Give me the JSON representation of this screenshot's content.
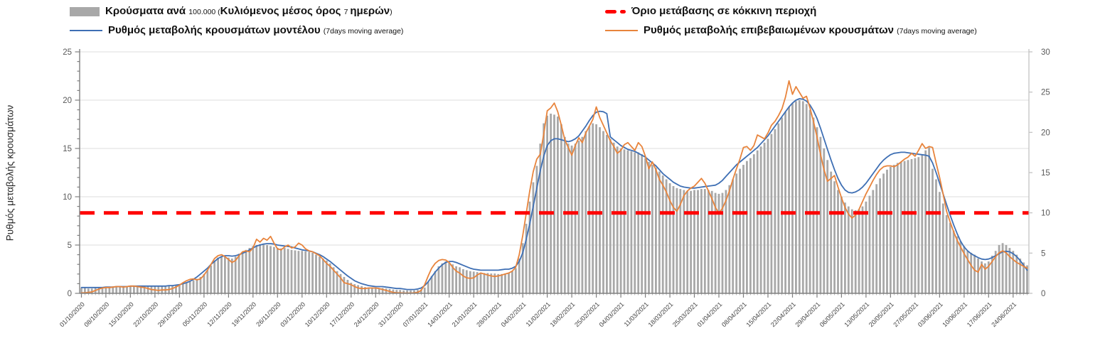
{
  "legend": {
    "cases_bars": {
      "main": "Κρούσματα ανά ",
      "unit": "100.000 (",
      "main2": "Κυλιόμενος μέσος όρος ",
      "num": "7 ",
      "main3": "ημερών",
      "close": ")"
    },
    "model_line": {
      "main": "Ρυθμός μεταβολής κρουσμάτων μοντέλου ",
      "small": "(7days moving average)"
    },
    "threshold": {
      "main": "Όριο μετάβασης σε κόκκινη περιοχή"
    },
    "confirmed_line": {
      "main": "Ρυθμός μεταβολής επιβεβαιωμένων κρουσμάτων ",
      "small": "(7days moving average)"
    }
  },
  "chart": {
    "y_left": {
      "title": "Ρυθμός μεταβολής κρουσμάτων",
      "ticks": [
        0,
        5,
        10,
        15,
        20,
        25
      ]
    },
    "y_right": {
      "ticks": [
        0,
        5,
        10,
        15,
        20,
        25,
        30
      ]
    },
    "colors": {
      "bar": "#a8a8a8",
      "model": "#3e6fb4",
      "confirmed": "#e8843c",
      "threshold": "#ff0000",
      "grid": "#dcdcdc",
      "axis": "#808080",
      "axis_light": "#bfbfbf",
      "tick_label": "#595959",
      "date_label": "#404040"
    }
  },
  "chart_data": {
    "type": "combo",
    "title": "",
    "start_date": "01/10/2020",
    "end_date": "28/06/2021",
    "frequency": "daily",
    "ylim_left": [
      0,
      25
    ],
    "ylim_right": [
      0,
      30
    ],
    "grid": "horizontal",
    "legend_position": "top",
    "x_tick_labels": [
      "01/10/2020",
      "08/10/2020",
      "15/10/2020",
      "22/10/2020",
      "29/10/2020",
      "05/11/2020",
      "12/11/2020",
      "19/11/2020",
      "26/11/2020",
      "03/12/2020",
      "10/12/2020",
      "17/12/2020",
      "24/12/2020",
      "31/12/2020",
      "07/01/2021",
      "14/01/2021",
      "21/01/2021",
      "28/01/2021",
      "04/02/2021",
      "11/02/2021",
      "18/02/2021",
      "25/02/2021",
      "04/03/2021",
      "11/03/2021",
      "18/03/2021",
      "25/03/2021",
      "01/04/2021",
      "08/04/2021",
      "15/04/2021",
      "22/04/2021",
      "29/04/2021",
      "06/05/2021",
      "13/05/2021",
      "20/05/2021",
      "27/05/2021",
      "03/06/2021",
      "10/06/2021",
      "17/06/2021",
      "24/06/2021"
    ],
    "threshold": {
      "name": "Όριο μετάβασης σε κόκκινη περιοχή",
      "value_right_axis": 10,
      "color": "#ff0000"
    },
    "series": [
      {
        "name": "Κρούσματα ανά 100.000 (Κυλιόμενος μέσος όρος 7 ημερών)",
        "type": "bar",
        "axis": "left",
        "color": "#a8a8a8",
        "values": [
          0.55,
          0.55,
          0.5,
          0.5,
          0.55,
          0.55,
          0.6,
          0.6,
          0.6,
          0.65,
          0.7,
          0.75,
          0.7,
          0.75,
          0.8,
          0.75,
          0.7,
          0.7,
          0.75,
          0.7,
          0.7,
          0.7,
          0.75,
          0.7,
          0.7,
          0.75,
          0.8,
          0.85,
          0.9,
          1.0,
          1.1,
          1.2,
          1.35,
          1.5,
          1.7,
          2.0,
          2.4,
          2.9,
          3.4,
          3.7,
          3.8,
          3.8,
          3.7,
          3.6,
          3.8,
          4.1,
          4.3,
          4.5,
          4.7,
          4.9,
          5.0,
          5.1,
          5.1,
          5.0,
          4.9,
          4.8,
          4.7,
          4.65,
          4.7,
          4.6,
          4.5,
          4.45,
          4.4,
          4.4,
          4.35,
          4.3,
          4.2,
          4.0,
          3.8,
          3.6,
          3.4,
          3.1,
          2.7,
          2.3,
          2.0,
          1.7,
          1.4,
          1.1,
          0.95,
          0.85,
          0.75,
          0.65,
          0.6,
          0.6,
          0.55,
          0.55,
          0.55,
          0.5,
          0.45,
          0.4,
          0.35,
          0.35,
          0.3,
          0.3,
          0.3,
          0.3,
          0.35,
          0.4,
          0.6,
          1.2,
          1.8,
          2.3,
          2.8,
          3.1,
          3.3,
          3.2,
          3.0,
          2.8,
          2.7,
          2.5,
          2.4,
          2.3,
          2.25,
          2.2,
          2.15,
          2.1,
          2.1,
          2.05,
          2.05,
          2.0,
          2.0,
          2.05,
          2.1,
          2.3,
          2.6,
          3.6,
          5.2,
          7.2,
          9.5,
          11.5,
          13.2,
          15.5,
          17.6,
          18.4,
          18.6,
          18.5,
          18.3,
          17.5,
          16.2,
          15.5,
          15.3,
          15.5,
          15.8,
          16.2,
          16.8,
          17.3,
          17.6,
          17.5,
          17.2,
          16.8,
          16.4,
          16.0,
          15.6,
          15.2,
          15.0,
          14.9,
          14.8,
          14.7,
          14.6,
          14.6,
          14.4,
          14.0,
          13.6,
          13.3,
          13.0,
          12.6,
          12.2,
          11.8,
          11.4,
          11.1,
          10.9,
          10.8,
          10.7,
          10.6,
          10.6,
          10.7,
          10.7,
          10.8,
          10.8,
          10.7,
          10.6,
          10.4,
          10.3,
          10.4,
          10.7,
          11.2,
          11.8,
          12.4,
          12.9,
          13.3,
          13.7,
          14.0,
          14.4,
          14.8,
          15.2,
          15.6,
          16.0,
          16.5,
          17.0,
          17.6,
          18.2,
          18.8,
          19.3,
          19.7,
          19.9,
          20.0,
          19.9,
          19.6,
          19.0,
          18.2,
          17.2,
          16.2,
          15.0,
          13.8,
          12.6,
          11.6,
          10.7,
          10.0,
          9.4,
          9.0,
          8.7,
          8.6,
          8.7,
          9.0,
          9.5,
          10.1,
          10.7,
          11.3,
          11.9,
          12.4,
          12.8,
          13.1,
          13.3,
          13.5,
          13.6,
          13.7,
          13.8,
          13.9,
          14.0,
          14.1,
          14.3,
          14.8,
          15.1,
          12.9,
          11.8,
          10.5,
          9.3,
          8.1,
          7.3,
          6.5,
          5.9,
          5.4,
          4.9,
          4.4,
          4.2,
          4.0,
          3.6,
          3.3,
          3.1,
          3.3,
          3.9,
          4.4,
          5.0,
          5.2,
          5.0,
          4.7,
          4.4,
          4.0,
          3.6,
          3.2,
          2.9
        ]
      },
      {
        "name": "Ρυθμός μεταβολής κρουσμάτων μοντέλου (7days moving average)",
        "type": "line",
        "axis": "left",
        "color": "#3e6fb4",
        "values": [
          0.6,
          0.6,
          0.6,
          0.6,
          0.6,
          0.6,
          0.6,
          0.65,
          0.65,
          0.65,
          0.7,
          0.7,
          0.7,
          0.7,
          0.75,
          0.75,
          0.75,
          0.75,
          0.75,
          0.75,
          0.75,
          0.75,
          0.75,
          0.75,
          0.75,
          0.8,
          0.8,
          0.85,
          0.9,
          1.0,
          1.1,
          1.25,
          1.45,
          1.7,
          2.0,
          2.3,
          2.6,
          3.0,
          3.3,
          3.6,
          3.8,
          3.9,
          3.9,
          3.85,
          3.9,
          4.0,
          4.15,
          4.3,
          4.5,
          4.7,
          4.9,
          5.0,
          5.1,
          5.15,
          5.15,
          5.1,
          5.0,
          4.95,
          4.9,
          4.85,
          4.8,
          4.7,
          4.6,
          4.5,
          4.45,
          4.4,
          4.3,
          4.15,
          4.0,
          3.8,
          3.55,
          3.3,
          3.0,
          2.7,
          2.4,
          2.1,
          1.8,
          1.55,
          1.3,
          1.15,
          1.0,
          0.9,
          0.8,
          0.75,
          0.7,
          0.7,
          0.7,
          0.65,
          0.6,
          0.55,
          0.5,
          0.5,
          0.45,
          0.4,
          0.4,
          0.4,
          0.45,
          0.55,
          0.8,
          1.2,
          1.7,
          2.2,
          2.6,
          2.95,
          3.2,
          3.3,
          3.3,
          3.2,
          3.05,
          2.9,
          2.75,
          2.6,
          2.5,
          2.45,
          2.4,
          2.4,
          2.4,
          2.4,
          2.4,
          2.4,
          2.45,
          2.5,
          2.5,
          2.6,
          2.8,
          3.3,
          4.2,
          5.6,
          7.2,
          9.0,
          10.9,
          12.7,
          14.2,
          15.3,
          15.8,
          16.0,
          16.0,
          15.9,
          15.8,
          15.7,
          15.8,
          16.0,
          16.3,
          16.8,
          17.3,
          17.9,
          18.4,
          18.75,
          18.85,
          18.8,
          18.6,
          16.2,
          15.9,
          15.6,
          15.3,
          15.1,
          14.9,
          14.8,
          14.7,
          14.5,
          14.3,
          14.1,
          13.8,
          13.5,
          13.2,
          12.8,
          12.4,
          12.1,
          11.8,
          11.5,
          11.3,
          11.1,
          11.0,
          10.95,
          10.9,
          10.9,
          10.95,
          11.0,
          11.05,
          11.1,
          11.15,
          11.2,
          11.4,
          11.7,
          12.1,
          12.5,
          12.9,
          13.3,
          13.6,
          13.9,
          14.2,
          14.5,
          14.8,
          15.1,
          15.5,
          15.9,
          16.3,
          16.8,
          17.3,
          17.8,
          18.3,
          18.8,
          19.3,
          19.7,
          20.0,
          20.15,
          20.1,
          19.9,
          19.5,
          18.9,
          18.1,
          17.1,
          16.0,
          14.9,
          13.8,
          12.8,
          11.9,
          11.2,
          10.7,
          10.45,
          10.4,
          10.5,
          10.7,
          11.0,
          11.4,
          11.9,
          12.4,
          12.9,
          13.4,
          13.8,
          14.1,
          14.35,
          14.5,
          14.55,
          14.6,
          14.6,
          14.55,
          14.5,
          14.45,
          14.4,
          14.35,
          14.3,
          14.2,
          13.5,
          12.5,
          11.4,
          10.3,
          9.2,
          8.1,
          7.1,
          6.2,
          5.4,
          4.8,
          4.4,
          4.1,
          3.9,
          3.7,
          3.55,
          3.5,
          3.55,
          3.7,
          3.9,
          4.1,
          4.3,
          4.35,
          4.3,
          4.1,
          3.8,
          3.4,
          2.9,
          2.4
        ]
      },
      {
        "name": "Ρυθμός μεταβολής επιβεβαιωμένων κρουσμάτων (7days moving average)",
        "type": "line",
        "axis": "left",
        "color": "#e8843c",
        "values": [
          0.05,
          0.05,
          0.1,
          0.15,
          0.3,
          0.45,
          0.55,
          0.6,
          0.6,
          0.65,
          0.7,
          0.7,
          0.65,
          0.7,
          0.75,
          0.75,
          0.7,
          0.65,
          0.6,
          0.5,
          0.4,
          0.35,
          0.3,
          0.35,
          0.35,
          0.4,
          0.5,
          0.65,
          0.85,
          1.1,
          1.3,
          1.45,
          1.5,
          1.4,
          1.5,
          1.9,
          2.4,
          3.0,
          3.6,
          3.9,
          4.0,
          3.8,
          3.5,
          3.2,
          3.4,
          3.9,
          4.3,
          4.4,
          4.3,
          4.7,
          5.6,
          5.3,
          5.7,
          5.5,
          5.9,
          5.2,
          4.6,
          4.5,
          4.8,
          5.0,
          4.7,
          4.8,
          5.2,
          5.0,
          4.6,
          4.4,
          4.3,
          4.1,
          3.9,
          3.5,
          3.1,
          2.8,
          2.4,
          2.0,
          1.6,
          1.1,
          1.0,
          0.9,
          0.7,
          0.55,
          0.5,
          0.5,
          0.55,
          0.55,
          0.55,
          0.5,
          0.4,
          0.3,
          0.2,
          0.1,
          0.05,
          0.05,
          0.02,
          0.02,
          0.02,
          0.05,
          0.1,
          0.3,
          0.9,
          1.8,
          2.6,
          3.1,
          3.4,
          3.5,
          3.45,
          3.2,
          2.7,
          2.3,
          2.1,
          1.8,
          1.6,
          1.55,
          1.6,
          1.9,
          2.1,
          2.0,
          1.9,
          1.8,
          1.75,
          1.8,
          1.9,
          2.0,
          2.1,
          2.3,
          2.7,
          4.0,
          6.0,
          8.3,
          10.6,
          12.6,
          13.9,
          14.4,
          16.5,
          18.9,
          19.2,
          19.7,
          18.8,
          17.4,
          15.9,
          15.1,
          14.3,
          15.3,
          16.1,
          15.6,
          16.6,
          17.3,
          18.0,
          19.3,
          18.2,
          17.4,
          16.6,
          15.8,
          15.2,
          14.5,
          14.8,
          15.4,
          15.6,
          15.2,
          14.8,
          15.6,
          15.2,
          14.2,
          12.9,
          13.6,
          12.8,
          11.8,
          11.2,
          10.5,
          9.6,
          8.9,
          8.5,
          9.2,
          10.1,
          10.6,
          10.9,
          11.1,
          11.5,
          11.9,
          11.4,
          10.6,
          9.8,
          8.9,
          8.3,
          8.8,
          9.6,
          10.6,
          11.8,
          12.9,
          13.9,
          15.1,
          15.2,
          14.8,
          15.3,
          16.4,
          16.2,
          16.0,
          16.6,
          17.4,
          17.8,
          18.4,
          19.1,
          20.3,
          22.0,
          20.6,
          21.4,
          20.8,
          20.2,
          20.4,
          19.2,
          17.8,
          16.2,
          14.4,
          12.8,
          11.6,
          11.9,
          12.2,
          11.0,
          9.9,
          8.9,
          8.2,
          7.8,
          8.1,
          8.7,
          9.5,
          10.3,
          11.0,
          11.7,
          12.3,
          12.8,
          13.1,
          13.2,
          13.2,
          13.1,
          13.3,
          13.6,
          13.9,
          14.1,
          14.5,
          14.2,
          14.8,
          15.5,
          15.0,
          15.2,
          15.1,
          13.5,
          12.0,
          10.3,
          8.5,
          7.4,
          6.4,
          5.5,
          4.8,
          4.1,
          3.5,
          2.9,
          2.4,
          2.2,
          3.0,
          2.5,
          2.8,
          3.3,
          3.8,
          4.2,
          4.4,
          4.2,
          3.8,
          3.5,
          3.2,
          3.0,
          2.8,
          2.6
        ]
      }
    ]
  }
}
